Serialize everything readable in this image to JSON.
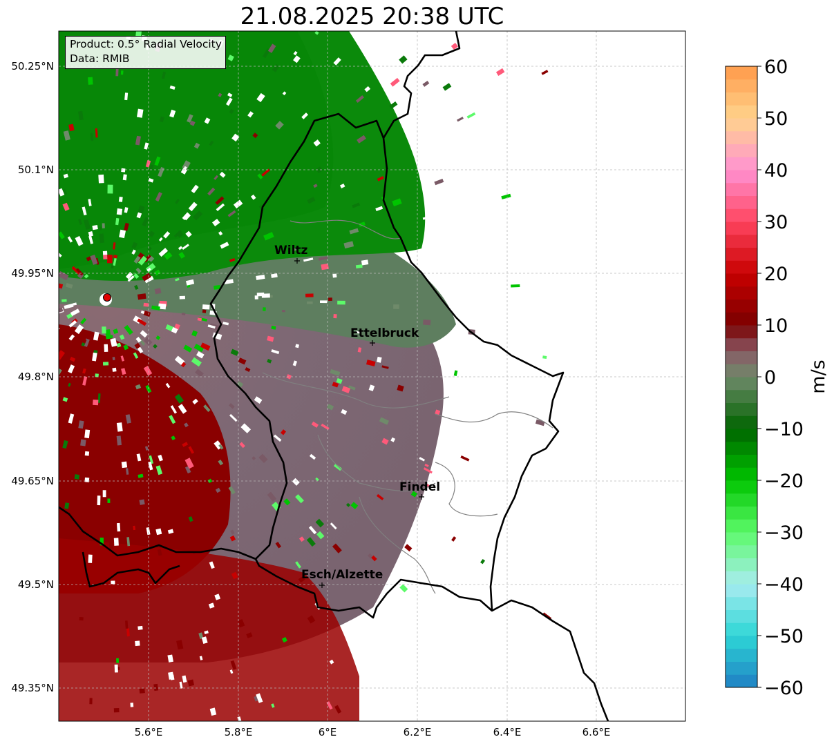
{
  "title": "21.08.2025 20:38 UTC",
  "info_box": {
    "product_line": "Product: 0.5° Radial Velocity",
    "data_line": "Data: RMIB"
  },
  "axes": {
    "lon_ticks": [
      "5.6°E",
      "5.8°E",
      "6°E",
      "6.2°E",
      "6.4°E",
      "6.6°E"
    ],
    "lat_ticks": [
      "50.25°N",
      "50.1°N",
      "49.95°N",
      "49.8°N",
      "49.65°N",
      "49.5°N",
      "49.35°N"
    ],
    "gridlines": true
  },
  "cities": [
    {
      "name": "Wiltz"
    },
    {
      "name": "Ettelbruck"
    },
    {
      "name": "Findel"
    },
    {
      "name": "Esch/Alzette"
    }
  ],
  "colorbar": {
    "unit": "m/s",
    "min": -60,
    "max": 60,
    "tick_labels": [
      "60",
      "50",
      "40",
      "30",
      "20",
      "10",
      "0",
      "−10",
      "−20",
      "−30",
      "−40",
      "−50",
      "−60"
    ],
    "colors": {
      "neg60": "#1f7fc4",
      "neg50": "#2ed6d6",
      "neg40": "#a8ecf0",
      "neg30": "#5dfa6a",
      "neg20": "#00c400",
      "neg10": "#006400",
      "zero": "#6f8a6a",
      "pos5": "#8a5a66",
      "pos10": "#7a0000",
      "pos20": "#c80000",
      "pos30": "#ff4560",
      "pos40": "#ff92d2",
      "pos50": "#ffd38c",
      "pos60": "#ff9a4a"
    }
  },
  "radar_site_color": "#e00000"
}
